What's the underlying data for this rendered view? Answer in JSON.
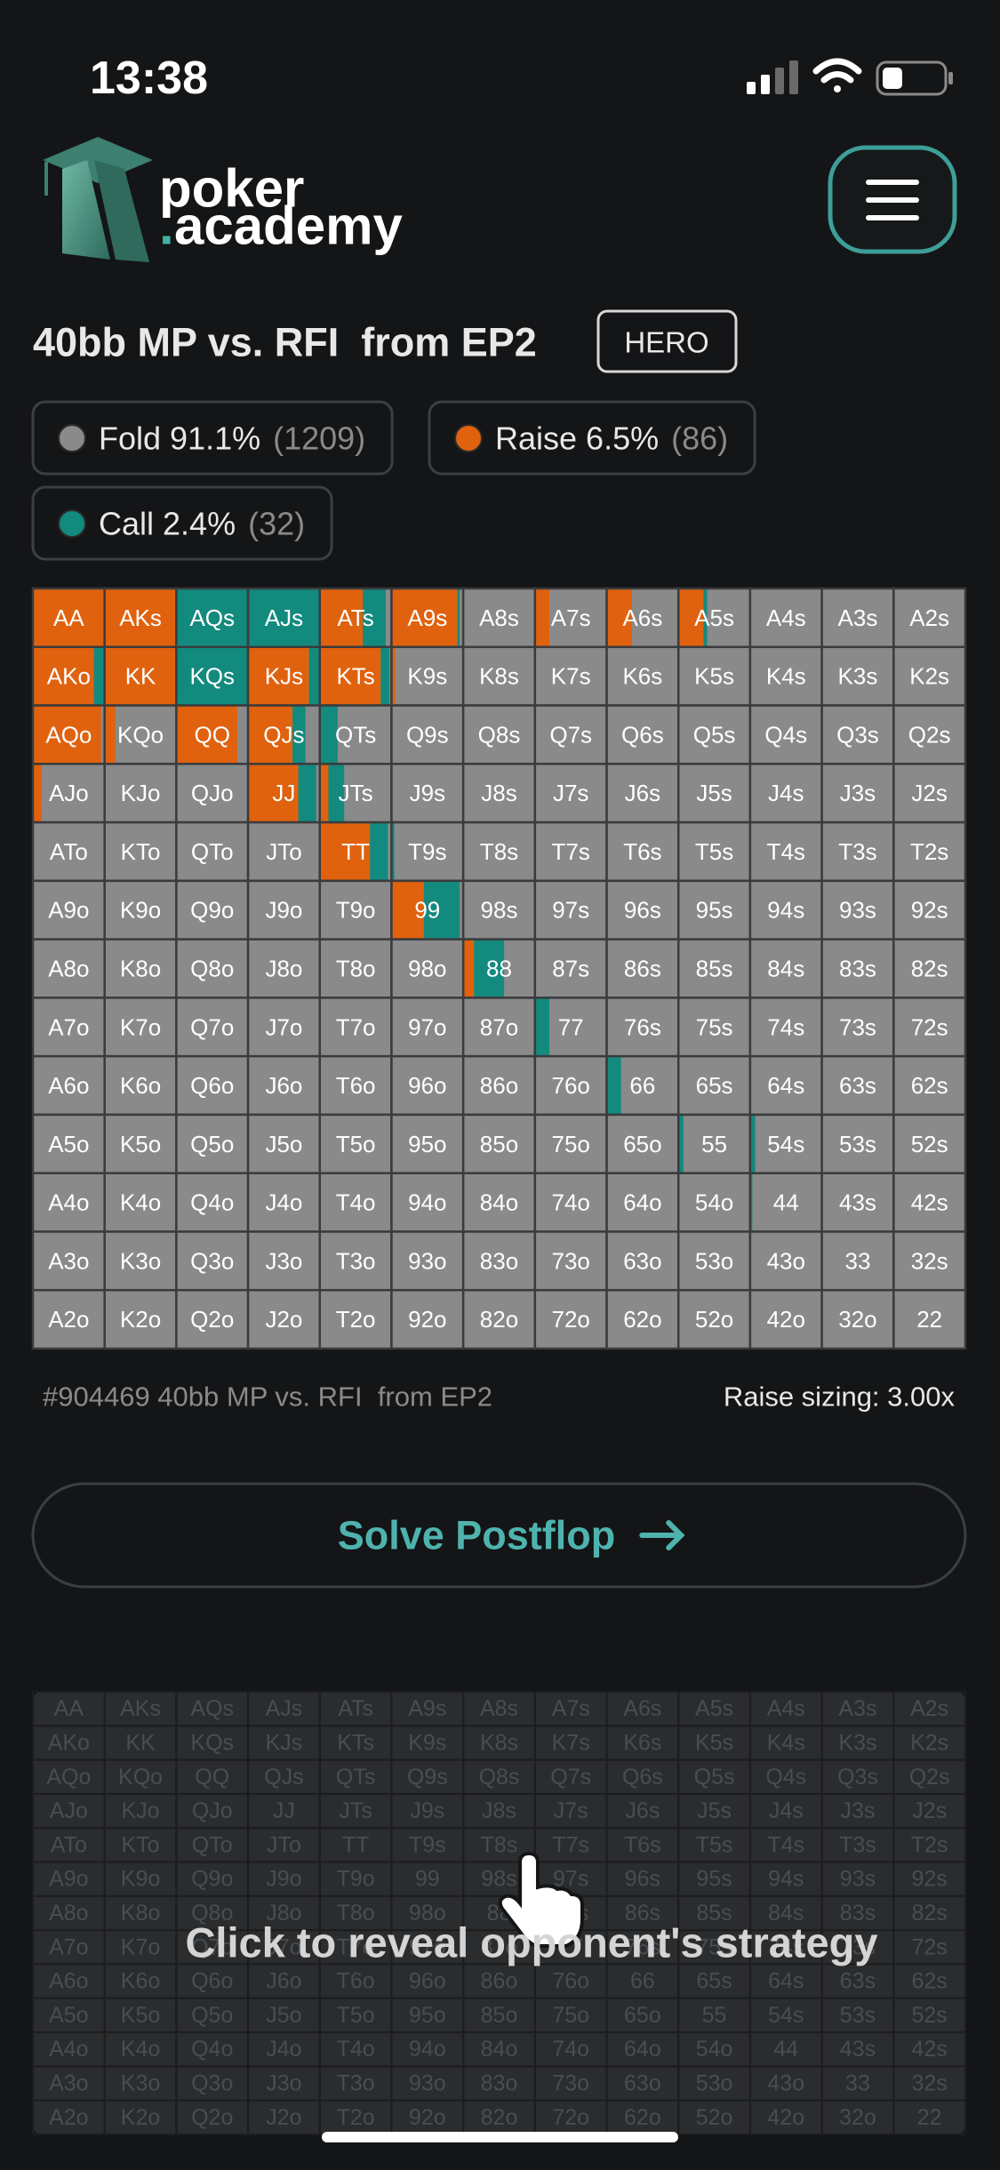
{
  "status_bar": {
    "time": "13:38"
  },
  "logo": {
    "word1": "poker",
    "dot": ".",
    "word2": "academy"
  },
  "spot": {
    "title": "40bb MP vs. RFI  from EP2",
    "badge": "HERO"
  },
  "legend": [
    {
      "label": "Fold 91.1%",
      "count": "(1209)",
      "color": "#8a8a8a"
    },
    {
      "label": "Raise 6.5%",
      "count": "(86)",
      "color": "#e0620e"
    },
    {
      "label": "Call 2.4%",
      "count": "(32)",
      "color": "#138a7e"
    }
  ],
  "grid": {
    "rows": [
      [
        "AA",
        "AKs",
        "AQs",
        "AJs",
        "ATs",
        "A9s",
        "A8s",
        "A7s",
        "A6s",
        "A5s",
        "A4s",
        "A3s",
        "A2s"
      ],
      [
        "AKo",
        "KK",
        "KQs",
        "KJs",
        "KTs",
        "K9s",
        "K8s",
        "K7s",
        "K6s",
        "K5s",
        "K4s",
        "K3s",
        "K2s"
      ],
      [
        "AQo",
        "KQo",
        "QQ",
        "QJs",
        "QTs",
        "Q9s",
        "Q8s",
        "Q7s",
        "Q6s",
        "Q5s",
        "Q4s",
        "Q3s",
        "Q2s"
      ],
      [
        "AJo",
        "KJo",
        "QJo",
        "JJ",
        "JTs",
        "J9s",
        "J8s",
        "J7s",
        "J6s",
        "J5s",
        "J4s",
        "J3s",
        "J2s"
      ],
      [
        "ATo",
        "KTo",
        "QTo",
        "JTo",
        "TT",
        "T9s",
        "T8s",
        "T7s",
        "T6s",
        "T5s",
        "T4s",
        "T3s",
        "T2s"
      ],
      [
        "A9o",
        "K9o",
        "Q9o",
        "J9o",
        "T9o",
        "99",
        "98s",
        "97s",
        "96s",
        "95s",
        "94s",
        "93s",
        "92s"
      ],
      [
        "A8o",
        "K8o",
        "Q8o",
        "J8o",
        "T8o",
        "98o",
        "88",
        "87s",
        "86s",
        "85s",
        "84s",
        "83s",
        "82s"
      ],
      [
        "A7o",
        "K7o",
        "Q7o",
        "J7o",
        "T7o",
        "97o",
        "87o",
        "77",
        "76s",
        "75s",
        "74s",
        "73s",
        "72s"
      ],
      [
        "A6o",
        "K6o",
        "Q6o",
        "J6o",
        "T6o",
        "96o",
        "86o",
        "76o",
        "66",
        "65s",
        "64s",
        "63s",
        "62s"
      ],
      [
        "A5o",
        "K5o",
        "Q5o",
        "J5o",
        "T5o",
        "95o",
        "85o",
        "75o",
        "65o",
        "55",
        "54s",
        "53s",
        "52s"
      ],
      [
        "A4o",
        "K4o",
        "Q4o",
        "J4o",
        "T4o",
        "94o",
        "84o",
        "74o",
        "64o",
        "54o",
        "44",
        "43s",
        "42s"
      ],
      [
        "A3o",
        "K3o",
        "Q3o",
        "J3o",
        "T3o",
        "93o",
        "83o",
        "73o",
        "63o",
        "53o",
        "43o",
        "33",
        "32s"
      ],
      [
        "A2o",
        "K2o",
        "Q2o",
        "J2o",
        "T2o",
        "92o",
        "82o",
        "72o",
        "62o",
        "52o",
        "42o",
        "32o",
        "22"
      ]
    ],
    "strategy": {
      "AA": [
        100,
        0
      ],
      "AKs": [
        100,
        0
      ],
      "AQs": [
        0,
        100
      ],
      "AJs": [
        0,
        100
      ],
      "ATs": [
        60,
        32
      ],
      "A9s": [
        92,
        3
      ],
      "A7s": [
        20,
        0
      ],
      "A6s": [
        35,
        0
      ],
      "A5s": [
        35,
        5
      ],
      "AKo": [
        85,
        15
      ],
      "KK": [
        100,
        0
      ],
      "KQs": [
        0,
        100
      ],
      "KJs": [
        85,
        15
      ],
      "KTs": [
        85,
        12
      ],
      "K9s": [
        5,
        0
      ],
      "AQo": [
        95,
        0
      ],
      "KQo": [
        15,
        0
      ],
      "QQ": [
        85,
        0
      ],
      "QJs": [
        62,
        18
      ],
      "QTs": [
        0,
        25
      ],
      "AJo": [
        12,
        0
      ],
      "JJ": [
        70,
        25
      ],
      "JTs": [
        12,
        22
      ],
      "TT": [
        70,
        25
      ],
      "T9s": [
        0,
        4
      ],
      "99": [
        45,
        50
      ],
      "88": [
        15,
        42
      ],
      "77": [
        0,
        20
      ],
      "66": [
        0,
        20
      ],
      "55": [
        0,
        7
      ],
      "54s": [
        0,
        7
      ],
      "44": [
        0,
        3
      ]
    }
  },
  "footer": {
    "spot_id": "#904469 40bb MP vs. RFI  from EP2",
    "sizing": "Raise sizing: 3.00x"
  },
  "solve_button": "Solve Postflop",
  "opponent": {
    "prompt": "Click to reveal opponent's strategy"
  }
}
